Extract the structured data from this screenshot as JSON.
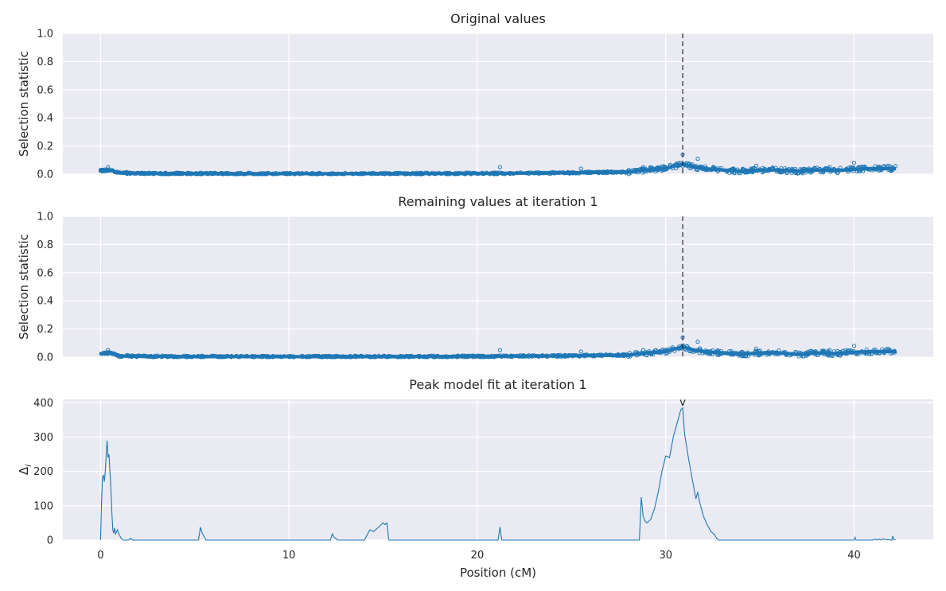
{
  "colors": {
    "series": "#1f77b4",
    "background": "#eaeaf2",
    "grid": "#ffffff",
    "marker_line": "#000000"
  },
  "figure": {
    "xlabel": "Position (cM)"
  },
  "chart_data": [
    {
      "type": "scatter",
      "title": "Original values",
      "ylabel": "Selection statistic",
      "xlim": [
        -2,
        44.2
      ],
      "ylim": [
        0,
        1.0
      ],
      "xticks": [
        0,
        10,
        20,
        30,
        40
      ],
      "yticks": [
        "0.0",
        "0.2",
        "0.4",
        "0.6",
        "0.8",
        "1.0"
      ],
      "grid": true,
      "marker_x": 30.9,
      "profile": [
        [
          0.0,
          0.025
        ],
        [
          0.5,
          0.03
        ],
        [
          1.0,
          0.008
        ],
        [
          3,
          0.005
        ],
        [
          10,
          0.003
        ],
        [
          20,
          0.005
        ],
        [
          25,
          0.01
        ],
        [
          28,
          0.015
        ],
        [
          29,
          0.03
        ],
        [
          30,
          0.04
        ],
        [
          30.5,
          0.06
        ],
        [
          31,
          0.07
        ],
        [
          31.5,
          0.05
        ],
        [
          32,
          0.04
        ],
        [
          33,
          0.03
        ],
        [
          34,
          0.02
        ],
        [
          35,
          0.03
        ],
        [
          36,
          0.03
        ],
        [
          37,
          0.02
        ],
        [
          38,
          0.03
        ],
        [
          39,
          0.025
        ],
        [
          40,
          0.035
        ],
        [
          41,
          0.04
        ],
        [
          42.2,
          0.04
        ]
      ],
      "outliers": [
        [
          0.4,
          0.05
        ],
        [
          1.4,
          0.015
        ],
        [
          21.2,
          0.05
        ],
        [
          25.5,
          0.04
        ],
        [
          28.8,
          0.05
        ],
        [
          30.9,
          0.14
        ],
        [
          31.7,
          0.11
        ],
        [
          34.8,
          0.06
        ],
        [
          38.7,
          0.05
        ],
        [
          40.0,
          0.08
        ],
        [
          41.8,
          0.06
        ]
      ]
    },
    {
      "type": "scatter",
      "title": "Remaining values at iteration 1",
      "ylabel": "Selection statistic",
      "xlim": [
        -2,
        44.2
      ],
      "ylim": [
        0,
        1.0
      ],
      "xticks": [
        0,
        10,
        20,
        30,
        40
      ],
      "yticks": [
        "0.0",
        "0.2",
        "0.4",
        "0.6",
        "0.8",
        "1.0"
      ],
      "grid": true,
      "marker_x": 30.9,
      "profile": [
        [
          0.0,
          0.025
        ],
        [
          0.5,
          0.03
        ],
        [
          1.0,
          0.008
        ],
        [
          3,
          0.005
        ],
        [
          10,
          0.003
        ],
        [
          20,
          0.005
        ],
        [
          25,
          0.01
        ],
        [
          28,
          0.015
        ],
        [
          29,
          0.03
        ],
        [
          30,
          0.04
        ],
        [
          30.5,
          0.06
        ],
        [
          31,
          0.07
        ],
        [
          31.5,
          0.05
        ],
        [
          32,
          0.04
        ],
        [
          33,
          0.03
        ],
        [
          34,
          0.02
        ],
        [
          35,
          0.03
        ],
        [
          36,
          0.03
        ],
        [
          37,
          0.02
        ],
        [
          38,
          0.03
        ],
        [
          39,
          0.025
        ],
        [
          40,
          0.035
        ],
        [
          41,
          0.04
        ],
        [
          42.2,
          0.04
        ]
      ],
      "outliers": [
        [
          0.4,
          0.05
        ],
        [
          1.4,
          0.015
        ],
        [
          21.2,
          0.05
        ],
        [
          25.5,
          0.04
        ],
        [
          28.8,
          0.05
        ],
        [
          30.9,
          0.14
        ],
        [
          31.7,
          0.11
        ],
        [
          34.8,
          0.06
        ],
        [
          38.7,
          0.05
        ],
        [
          40.0,
          0.08
        ],
        [
          41.8,
          0.06
        ]
      ]
    },
    {
      "type": "line",
      "title": "Peak model fit at iteration 1",
      "ylabel": "Δ_i",
      "xlim": [
        -2,
        44.2
      ],
      "ylim": [
        0,
        410
      ],
      "xticks": [
        0,
        10,
        20,
        30,
        40
      ],
      "yticks": [
        "0",
        "100",
        "200",
        "300",
        "400"
      ],
      "grid": true,
      "peak_marker": {
        "x": 30.9,
        "label": "v"
      },
      "x": [
        0,
        0.05,
        0.1,
        0.15,
        0.2,
        0.25,
        0.3,
        0.35,
        0.4,
        0.45,
        0.5,
        0.55,
        0.6,
        0.65,
        0.7,
        0.75,
        0.8,
        0.9,
        1.0,
        1.1,
        1.2,
        1.5,
        1.6,
        1.7,
        5.2,
        5.3,
        5.4,
        5.6,
        12.2,
        12.3,
        12.4,
        12.6,
        14.0,
        14.1,
        14.3,
        14.5,
        14.7,
        14.9,
        15.0,
        15.1,
        15.2,
        15.3,
        21.1,
        21.2,
        21.3,
        28.6,
        28.7,
        28.8,
        28.9,
        29.0,
        29.2,
        29.4,
        29.6,
        29.8,
        30.0,
        30.2,
        30.4,
        30.6,
        30.8,
        30.9,
        31.0,
        31.2,
        31.4,
        31.6,
        31.7,
        31.8,
        32.0,
        32.2,
        32.4,
        32.6,
        32.7,
        32.8,
        40.0,
        40.05,
        40.1,
        41.0,
        41.1,
        41.2,
        41.3,
        41.4,
        41.5,
        42.0,
        42.05,
        42.1,
        42.2
      ],
      "y": [
        0,
        100,
        180,
        190,
        170,
        200,
        250,
        290,
        240,
        250,
        200,
        150,
        80,
        30,
        20,
        35,
        18,
        30,
        15,
        5,
        0,
        0,
        5,
        0,
        0,
        38,
        20,
        0,
        0,
        18,
        8,
        0,
        0,
        10,
        30,
        25,
        35,
        45,
        50,
        45,
        50,
        0,
        0,
        38,
        0,
        0,
        125,
        70,
        55,
        50,
        60,
        90,
        140,
        200,
        245,
        240,
        300,
        340,
        380,
        385,
        310,
        240,
        180,
        120,
        140,
        110,
        70,
        45,
        25,
        15,
        5,
        0,
        0,
        8,
        0,
        0,
        3,
        0,
        3,
        0,
        3,
        0,
        12,
        2,
        0
      ]
    }
  ]
}
